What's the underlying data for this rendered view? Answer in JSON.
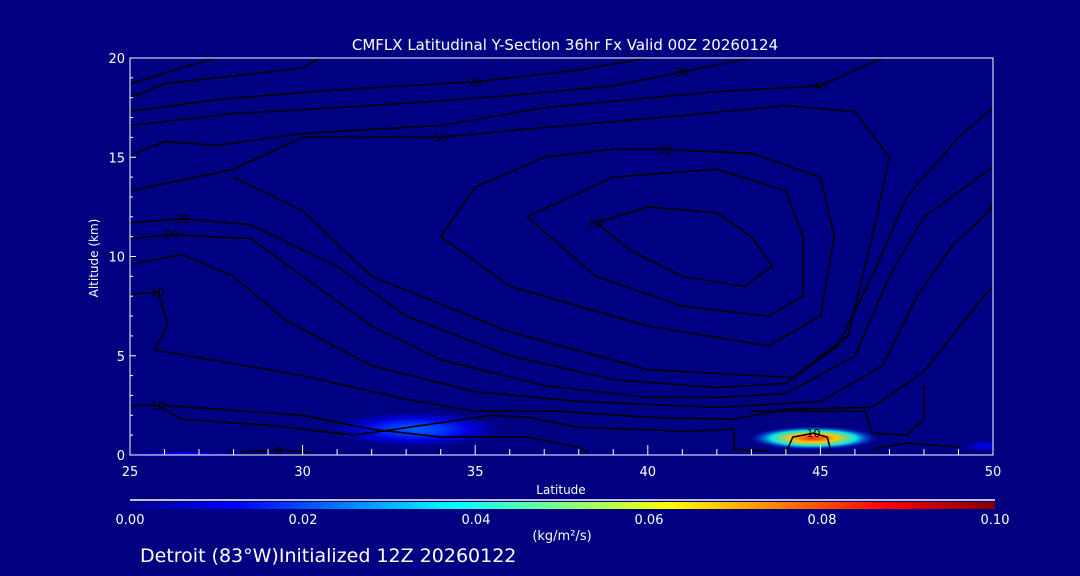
{
  "chart_data": {
    "type": "contour",
    "title": "CMFLX Latitudinal Y-Section 36hr  Fx Valid 00Z 20260124",
    "xlabel": "Latitude",
    "ylabel": "Altitude (km)",
    "xlim": [
      25,
      50
    ],
    "ylim": [
      0,
      20
    ],
    "x_ticks": [
      "25",
      "30",
      "35",
      "40",
      "45",
      "50"
    ],
    "y_ticks": [
      "0",
      "5",
      "10",
      "15",
      "20"
    ],
    "colorbar": {
      "unit": "(kg/m²/s)",
      "range": [
        0,
        0.1
      ],
      "tick_labels": [
        "0.00",
        "0.02",
        "0.04",
        "0.06",
        "0.08",
        "0.10"
      ],
      "colormap": "jet"
    },
    "filled_regions": [
      {
        "lat": 33.3,
        "alt": 1.3,
        "value": 0.022,
        "lat_halfwidth": 2.4,
        "alt_halfwidth": 0.85
      },
      {
        "lat": 44.8,
        "alt": 0.85,
        "value": 0.085,
        "lat_halfwidth": 1.9,
        "alt_halfwidth": 0.6
      },
      {
        "lat": 49.8,
        "alt": 0.45,
        "value": 0.012,
        "lat_halfwidth": 0.6,
        "alt_halfwidth": 0.25
      },
      {
        "lat": 26.5,
        "alt": 0.05,
        "value": 0.015,
        "lat_halfwidth": 1.5,
        "alt_halfwidth": 0.12
      }
    ],
    "contours": [
      {
        "label": "10",
        "label_at": -1,
        "points": [
          [
            25,
            18.7
          ],
          [
            26.5,
            19.5
          ],
          [
            27.5,
            20
          ]
        ]
      },
      {
        "label": "20",
        "label_at": -1,
        "points": [
          [
            25,
            18
          ],
          [
            26,
            18.7
          ],
          [
            28,
            19.1
          ],
          [
            30,
            19.5
          ],
          [
            30.5,
            20
          ]
        ]
      },
      {
        "label": "20",
        "label_at": 3,
        "points": [
          [
            25,
            17.3
          ],
          [
            27.5,
            17.9
          ],
          [
            31,
            18.4
          ],
          [
            35,
            18.8
          ],
          [
            38,
            19.4
          ],
          [
            40,
            20
          ]
        ]
      },
      {
        "label": "30",
        "label_at": 5,
        "points": [
          [
            25,
            16.6
          ],
          [
            28,
            17.2
          ],
          [
            32,
            17.6
          ],
          [
            36,
            18.1
          ],
          [
            39,
            18.6
          ],
          [
            41,
            19.3
          ],
          [
            43,
            20
          ]
        ]
      },
      {
        "label": "40",
        "label_at": 7,
        "points": [
          [
            25,
            15.1
          ],
          [
            26,
            15.8
          ],
          [
            27.5,
            15.6
          ],
          [
            30,
            16.2
          ],
          [
            34,
            16.6
          ],
          [
            37,
            17.5
          ],
          [
            42,
            18.3
          ],
          [
            45,
            18.6
          ],
          [
            46.8,
            20
          ]
        ]
      },
      {
        "label": "50",
        "label_at": 3,
        "points": [
          [
            25,
            13.3
          ],
          [
            28,
            14.4
          ],
          [
            30,
            16
          ],
          [
            34,
            16
          ],
          [
            37,
            16.5
          ],
          [
            41,
            17.1
          ],
          [
            44,
            17.6
          ],
          [
            46,
            17.3
          ],
          [
            47,
            15
          ],
          [
            46.5,
            11
          ],
          [
            45.8,
            6
          ],
          [
            44.2,
            3.9
          ],
          [
            40,
            4.3
          ],
          [
            36,
            6.2
          ],
          [
            32,
            9
          ],
          [
            30,
            12.3
          ],
          [
            28,
            14
          ]
        ]
      },
      {
        "label": "60",
        "label_at": 3,
        "points": [
          [
            35,
            13.5
          ],
          [
            37,
            15
          ],
          [
            39,
            15.4
          ],
          [
            40.5,
            15.4
          ],
          [
            43,
            15.2
          ],
          [
            45,
            14
          ],
          [
            45.4,
            11
          ],
          [
            45,
            7
          ],
          [
            43.5,
            5.5
          ],
          [
            40,
            6.5
          ],
          [
            36,
            8.5
          ],
          [
            34,
            11
          ],
          [
            35,
            13.5
          ]
        ]
      },
      {
        "label": "70",
        "label_at": -1,
        "points": [
          [
            36.5,
            12
          ],
          [
            39,
            14
          ],
          [
            42,
            14.4
          ],
          [
            44,
            13.3
          ],
          [
            44.5,
            11
          ],
          [
            44.5,
            8
          ],
          [
            43.5,
            7
          ],
          [
            41,
            7.5
          ],
          [
            38.5,
            9
          ],
          [
            36.5,
            12
          ]
        ]
      },
      {
        "label": "80",
        "label_at": 8,
        "points": [
          [
            38.5,
            11.7
          ],
          [
            40,
            12.5
          ],
          [
            42,
            12.2
          ],
          [
            43,
            11
          ],
          [
            43.6,
            9.5
          ],
          [
            42.8,
            8.5
          ],
          [
            41,
            9
          ],
          [
            39.5,
            10.3
          ],
          [
            38.5,
            11.7
          ]
        ]
      },
      {
        "label": "30",
        "label_at": 1,
        "points": [
          [
            25,
            11.7
          ],
          [
            26.5,
            11.9
          ],
          [
            28.5,
            11.6
          ],
          [
            31,
            9.5
          ],
          [
            33,
            7
          ],
          [
            36,
            5
          ],
          [
            39,
            3.8
          ],
          [
            42,
            3.4
          ],
          [
            44,
            3.6
          ],
          [
            45.5,
            5.5
          ],
          [
            46.5,
            9
          ],
          [
            47.5,
            13
          ],
          [
            49,
            16
          ],
          [
            50,
            17.5
          ]
        ]
      },
      {
        "label": "20",
        "label_at": 1,
        "points": [
          [
            25,
            10.9
          ],
          [
            26.2,
            11.1
          ],
          [
            28.5,
            10.9
          ],
          [
            30,
            9
          ],
          [
            32,
            6.5
          ],
          [
            34,
            4.8
          ],
          [
            37,
            3.5
          ],
          [
            40,
            2.9
          ],
          [
            42,
            2.9
          ],
          [
            44,
            3.1
          ],
          [
            46,
            5
          ],
          [
            47,
            9
          ],
          [
            48,
            12
          ],
          [
            50,
            14.5
          ]
        ]
      },
      {
        "label": "30",
        "label_at": 12,
        "points": [
          [
            25,
            9.6
          ],
          [
            26.5,
            10.1
          ],
          [
            28,
            9
          ],
          [
            29.5,
            6.8
          ],
          [
            32,
            4.5
          ],
          [
            35,
            3.2
          ],
          [
            38,
            2.7
          ],
          [
            42,
            2.4
          ],
          [
            45,
            2.7
          ],
          [
            46.8,
            4.5
          ],
          [
            47.8,
            8
          ],
          [
            48.8,
            10.5
          ],
          [
            50,
            12.5
          ]
        ]
      },
      {
        "label": "10",
        "label_at": 1,
        "points": [
          [
            25,
            8.1
          ],
          [
            25.8,
            8.2
          ],
          [
            26.1,
            6.6
          ],
          [
            25.7,
            5.3
          ],
          [
            27,
            4.9
          ],
          [
            30,
            4
          ],
          [
            33,
            2.8
          ],
          [
            35,
            2.2
          ],
          [
            37.5,
            2.2
          ],
          [
            40,
            1.9
          ],
          [
            42.5,
            1.8
          ],
          [
            44,
            2.3
          ],
          [
            46.5,
            2.4
          ],
          [
            48,
            4.2
          ],
          [
            49.5,
            7.5
          ],
          [
            50,
            8.5
          ]
        ]
      },
      {
        "label": "10",
        "label_at": 1,
        "points": [
          [
            25,
            2.5
          ],
          [
            25.8,
            2.5
          ],
          [
            26.5,
            1.8
          ],
          [
            29,
            1.5
          ],
          [
            31.5,
            1
          ],
          [
            33.5,
            1.5
          ],
          [
            35.5,
            2
          ],
          [
            36.5,
            1.9
          ],
          [
            38,
            1.4
          ],
          [
            41,
            1.2
          ],
          [
            42.5,
            1.3
          ],
          [
            42.5,
            0.3
          ],
          [
            43.5,
            0.2
          ]
        ]
      },
      {
        "label": "10",
        "label_at": 2,
        "points": [
          [
            44,
            0.1
          ],
          [
            44.2,
            0.9
          ],
          [
            44.8,
            1.1
          ],
          [
            45.2,
            0.9
          ],
          [
            45.3,
            0.2
          ]
        ]
      },
      {
        "label": "",
        "label_at": -1,
        "points": [
          [
            43,
            2.2
          ],
          [
            46.3,
            2.2
          ],
          [
            46.5,
            1.1
          ],
          [
            47.5,
            1.0
          ],
          [
            48,
            1.8
          ],
          [
            48,
            3.5
          ]
        ]
      },
      {
        "label": "",
        "label_at": -1,
        "points": [
          [
            26,
            2.5
          ],
          [
            30,
            2.0
          ],
          [
            32,
            1.3
          ],
          [
            34,
            0.9
          ],
          [
            36.5,
            0.9
          ],
          [
            38,
            0.4
          ],
          [
            38.3,
            0.1
          ]
        ]
      },
      {
        "label": "0",
        "label_at": 1,
        "points": [
          [
            28.2,
            0.15
          ],
          [
            29.3,
            0.25
          ],
          [
            30.2,
            0.15
          ]
        ]
      },
      {
        "label": "",
        "label_at": -1,
        "points": [
          [
            46.5,
            0.3
          ],
          [
            47.5,
            0.6
          ],
          [
            49,
            0.4
          ]
        ]
      }
    ]
  },
  "footer": {
    "caption": "Detroit (83°W)Initialized 12Z 20260122"
  }
}
